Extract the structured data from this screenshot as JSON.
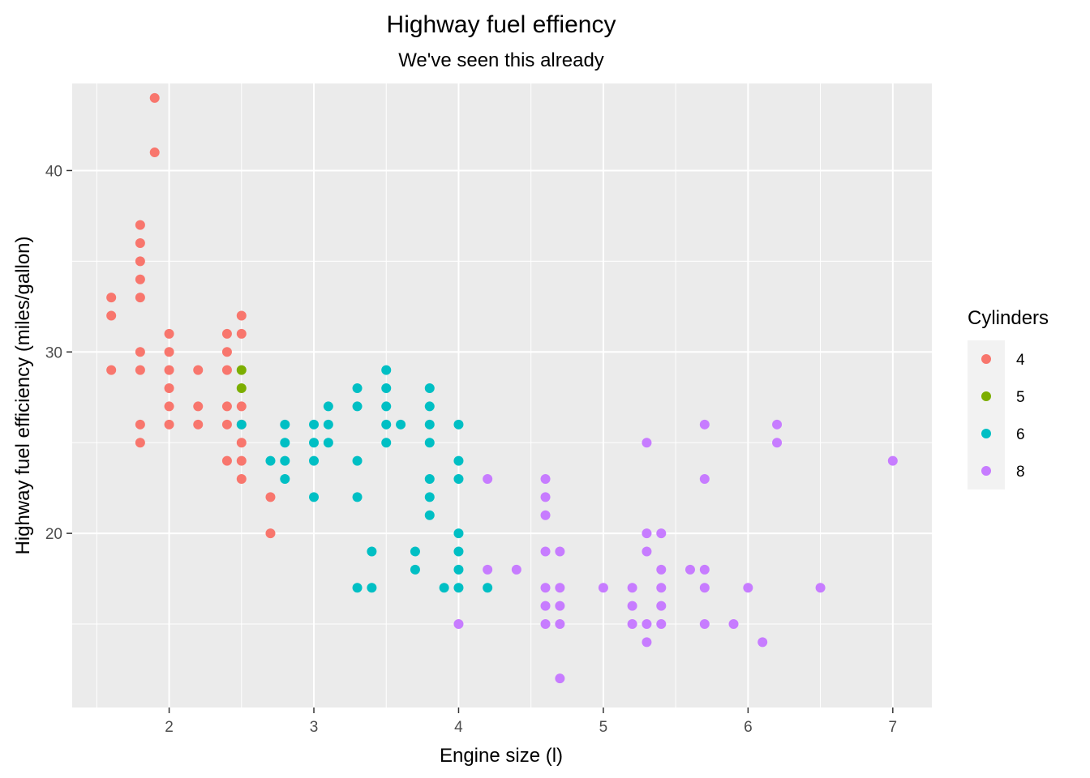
{
  "chart_data": {
    "type": "scatter",
    "title": "Highway fuel effiency",
    "subtitle": "We've seen this already",
    "xlabel": "Engine size (l)",
    "ylabel": "Highway fuel efficiency (miles/gallon)",
    "xlim": [
      1.33,
      7.27
    ],
    "ylim": [
      10.4,
      44.8
    ],
    "x_ticks": [
      2,
      3,
      4,
      5,
      6,
      7
    ],
    "y_ticks": [
      20,
      30,
      40
    ],
    "x_tick_labels": [
      "2",
      "3",
      "4",
      "5",
      "6",
      "7"
    ],
    "y_tick_labels": [
      "20",
      "30",
      "40"
    ],
    "grid": true,
    "legend": {
      "title": "Cylinders",
      "position": "right"
    },
    "colors": {
      "4": "#F8766D",
      "5": "#7CAE00",
      "6": "#00BFC4",
      "8": "#C77CFF",
      "panel": "#EBEBEB",
      "grid": "#FFFFFF"
    },
    "series": [
      {
        "name": "4",
        "color": "#F8766D",
        "points": [
          [
            1.6,
            33
          ],
          [
            1.6,
            32
          ],
          [
            1.6,
            29
          ],
          [
            1.8,
            37
          ],
          [
            1.8,
            36
          ],
          [
            1.8,
            35
          ],
          [
            1.8,
            34
          ],
          [
            1.8,
            33
          ],
          [
            1.8,
            30
          ],
          [
            1.8,
            29
          ],
          [
            1.8,
            26
          ],
          [
            1.8,
            25
          ],
          [
            1.9,
            44
          ],
          [
            1.9,
            41
          ],
          [
            2.0,
            31
          ],
          [
            2.0,
            30
          ],
          [
            2.0,
            29
          ],
          [
            2.0,
            28
          ],
          [
            2.0,
            27
          ],
          [
            2.0,
            26
          ],
          [
            2.2,
            29
          ],
          [
            2.2,
            27
          ],
          [
            2.2,
            26
          ],
          [
            2.4,
            31
          ],
          [
            2.4,
            30
          ],
          [
            2.4,
            29
          ],
          [
            2.4,
            27
          ],
          [
            2.4,
            26
          ],
          [
            2.4,
            24
          ],
          [
            2.5,
            32
          ],
          [
            2.5,
            31
          ],
          [
            2.5,
            27
          ],
          [
            2.5,
            26
          ],
          [
            2.5,
            25
          ],
          [
            2.5,
            24
          ],
          [
            2.5,
            23
          ],
          [
            2.7,
            22
          ],
          [
            2.7,
            20
          ]
        ]
      },
      {
        "name": "5",
        "color": "#7CAE00",
        "points": [
          [
            2.5,
            29
          ],
          [
            2.5,
            28
          ]
        ]
      },
      {
        "name": "6",
        "color": "#00BFC4",
        "points": [
          [
            2.5,
            26
          ],
          [
            2.7,
            24
          ],
          [
            2.8,
            26
          ],
          [
            2.8,
            25
          ],
          [
            2.8,
            24
          ],
          [
            2.8,
            23
          ],
          [
            3.0,
            26
          ],
          [
            3.0,
            25
          ],
          [
            3.0,
            24
          ],
          [
            3.0,
            22
          ],
          [
            3.1,
            27
          ],
          [
            3.1,
            26
          ],
          [
            3.1,
            25
          ],
          [
            3.3,
            28
          ],
          [
            3.3,
            27
          ],
          [
            3.3,
            24
          ],
          [
            3.3,
            22
          ],
          [
            3.3,
            17
          ],
          [
            3.4,
            19
          ],
          [
            3.4,
            17
          ],
          [
            3.5,
            29
          ],
          [
            3.5,
            28
          ],
          [
            3.5,
            27
          ],
          [
            3.5,
            26
          ],
          [
            3.5,
            25
          ],
          [
            3.6,
            26
          ],
          [
            3.7,
            19
          ],
          [
            3.7,
            18
          ],
          [
            3.8,
            28
          ],
          [
            3.8,
            27
          ],
          [
            3.8,
            26
          ],
          [
            3.8,
            25
          ],
          [
            3.8,
            23
          ],
          [
            3.8,
            22
          ],
          [
            3.8,
            21
          ],
          [
            3.9,
            17
          ],
          [
            4.0,
            26
          ],
          [
            4.0,
            24
          ],
          [
            4.0,
            23
          ],
          [
            4.0,
            20
          ],
          [
            4.0,
            19
          ],
          [
            4.0,
            18
          ],
          [
            4.0,
            17
          ],
          [
            4.2,
            17
          ]
        ]
      },
      {
        "name": "8",
        "color": "#C77CFF",
        "points": [
          [
            4.0,
            15
          ],
          [
            4.2,
            23
          ],
          [
            4.2,
            18
          ],
          [
            4.4,
            18
          ],
          [
            4.6,
            23
          ],
          [
            4.6,
            22
          ],
          [
            4.6,
            21
          ],
          [
            4.6,
            19
          ],
          [
            4.6,
            17
          ],
          [
            4.6,
            16
          ],
          [
            4.6,
            15
          ],
          [
            4.7,
            19
          ],
          [
            4.7,
            17
          ],
          [
            4.7,
            16
          ],
          [
            4.7,
            15
          ],
          [
            4.7,
            12
          ],
          [
            5.0,
            17
          ],
          [
            5.2,
            17
          ],
          [
            5.2,
            16
          ],
          [
            5.2,
            15
          ],
          [
            5.3,
            25
          ],
          [
            5.3,
            20
          ],
          [
            5.3,
            19
          ],
          [
            5.3,
            15
          ],
          [
            5.3,
            14
          ],
          [
            5.4,
            20
          ],
          [
            5.4,
            18
          ],
          [
            5.4,
            17
          ],
          [
            5.4,
            16
          ],
          [
            5.4,
            15
          ],
          [
            5.6,
            18
          ],
          [
            5.7,
            26
          ],
          [
            5.7,
            23
          ],
          [
            5.7,
            18
          ],
          [
            5.7,
            17
          ],
          [
            5.7,
            15
          ],
          [
            5.9,
            15
          ],
          [
            6.0,
            17
          ],
          [
            6.1,
            14
          ],
          [
            6.2,
            26
          ],
          [
            6.2,
            25
          ],
          [
            6.5,
            17
          ],
          [
            7.0,
            24
          ]
        ]
      }
    ]
  }
}
